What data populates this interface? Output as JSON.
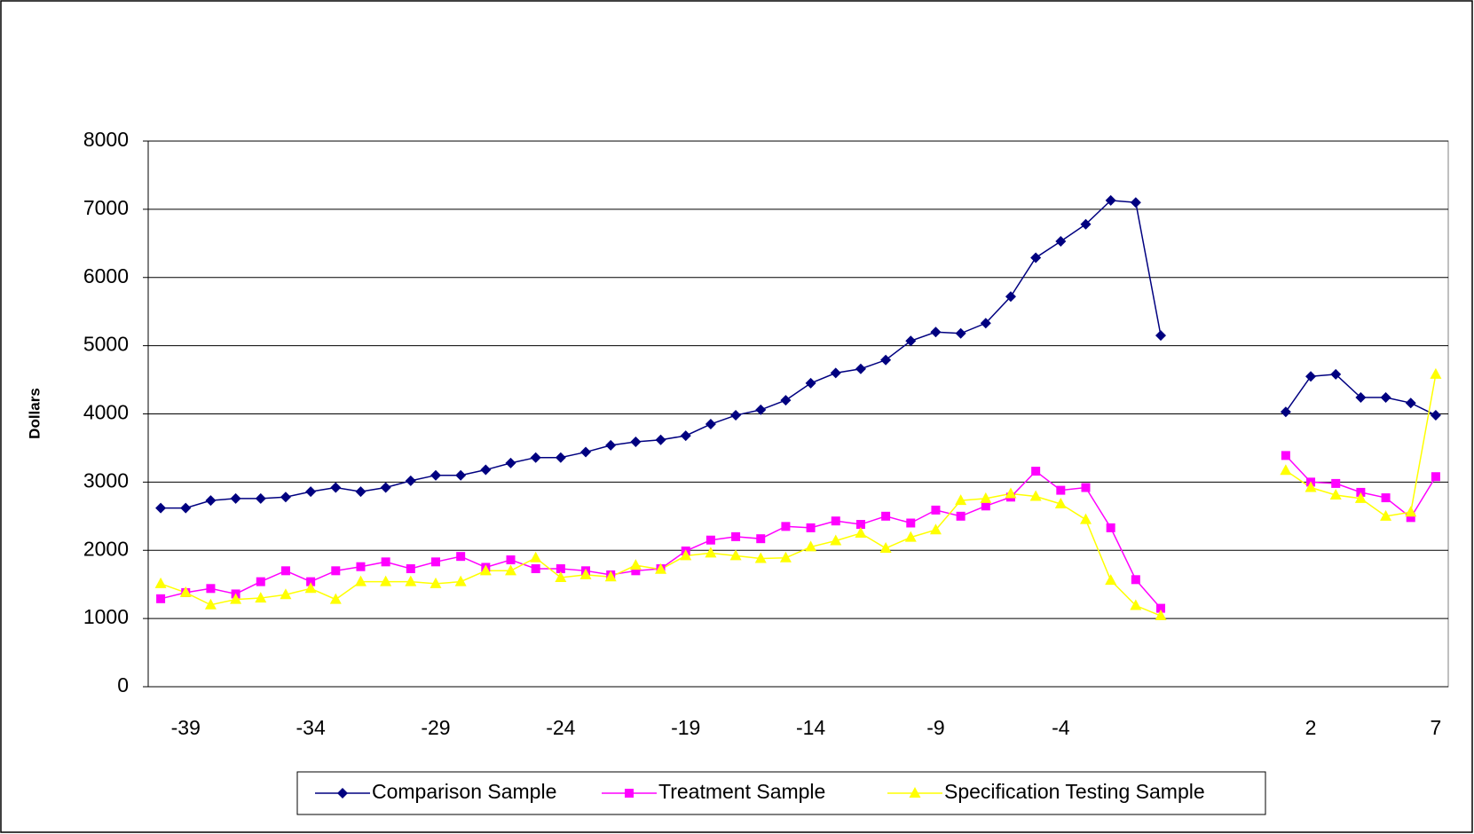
{
  "chart_data": {
    "type": "line",
    "y_label": "Dollars",
    "categories": [
      null,
      "-39",
      null,
      null,
      null,
      null,
      "-34",
      null,
      null,
      null,
      null,
      "-29",
      null,
      null,
      null,
      null,
      "-24",
      null,
      null,
      null,
      null,
      "-19",
      null,
      null,
      null,
      null,
      "-14",
      null,
      null,
      null,
      null,
      "-9",
      null,
      null,
      null,
      null,
      "-4",
      null,
      null,
      null,
      null,
      null,
      null,
      null,
      null,
      null,
      "2",
      null,
      null,
      null,
      null,
      "7"
    ],
    "series": [
      {
        "name": "Comparison Sample",
        "color": "#000080",
        "marker": "diamond",
        "values": [
          2620,
          2620,
          2730,
          2760,
          2760,
          2780,
          2860,
          2920,
          2860,
          2920,
          3020,
          3100,
          3100,
          3180,
          3280,
          3360,
          3360,
          3440,
          3540,
          3590,
          3620,
          3680,
          3850,
          3980,
          4060,
          4200,
          4450,
          4600,
          4660,
          4790,
          5070,
          5200,
          5180,
          5330,
          5720,
          6290,
          6530,
          6780,
          7130,
          7100,
          5150,
          null,
          null,
          null,
          null,
          4030,
          4550,
          4580,
          4240,
          4240,
          4160,
          3980
        ]
      },
      {
        "name": "Treatment Sample",
        "color": "#ff00ff",
        "marker": "square",
        "values": [
          1290,
          1380,
          1440,
          1360,
          1540,
          1700,
          1540,
          1700,
          1760,
          1830,
          1730,
          1830,
          1910,
          1750,
          1860,
          1730,
          1730,
          1700,
          1640,
          1700,
          1730,
          1990,
          2150,
          2200,
          2170,
          2350,
          2330,
          2430,
          2380,
          2500,
          2400,
          2590,
          2500,
          2650,
          2780,
          3160,
          2880,
          2920,
          2330,
          1570,
          1150,
          null,
          null,
          null,
          null,
          3390,
          3000,
          2980,
          2850,
          2770,
          2480,
          3080
        ]
      },
      {
        "name": "Specification Testing Sample",
        "color": "#ffff00",
        "marker": "triangle",
        "values": [
          1510,
          1380,
          1200,
          1280,
          1300,
          1350,
          1440,
          1280,
          1540,
          1540,
          1540,
          1510,
          1540,
          1700,
          1700,
          1890,
          1600,
          1640,
          1610,
          1780,
          1720,
          1920,
          1960,
          1920,
          1880,
          1890,
          2050,
          2140,
          2250,
          2030,
          2190,
          2300,
          2730,
          2760,
          2830,
          2790,
          2680,
          2450,
          1560,
          1190,
          1040,
          null,
          null,
          null,
          null,
          3170,
          2920,
          2810,
          2760,
          2500,
          2560,
          4580
        ]
      }
    ],
    "ylim": [
      0,
      8000
    ],
    "yticks": [
      0,
      1000,
      2000,
      3000,
      4000,
      5000,
      6000,
      7000,
      8000
    ],
    "grid": true,
    "legend": "bottom"
  }
}
